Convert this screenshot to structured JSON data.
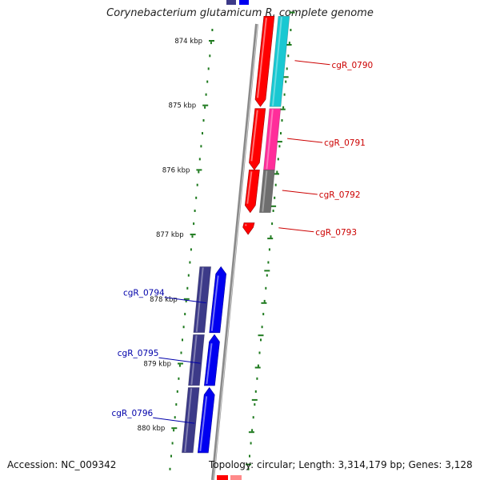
{
  "header": {
    "title": "Corynebacterium glutamicum R, complete genome"
  },
  "colors": {
    "backbone": "#8a8a8a",
    "ticks": "#1e7a1e",
    "forward_label": "#cc0000",
    "reverse_label": "#0000aa",
    "red": "#ff0000",
    "cyan": "#19c8d2",
    "magenta": "#ff2d9a",
    "gray": "#6e6e6e",
    "blue": "#0000f0",
    "navy": "#3c3a88"
  },
  "ruler": {
    "unit": "kbp",
    "labels": [
      {
        "kbp": 874,
        "text": "874 kbp"
      },
      {
        "kbp": 875,
        "text": "875 kbp"
      },
      {
        "kbp": 876,
        "text": "876 kbp"
      },
      {
        "kbp": 877,
        "text": "877 kbp"
      },
      {
        "kbp": 878,
        "text": "878 kbp"
      },
      {
        "kbp": 879,
        "text": "879 kbp"
      },
      {
        "kbp": 880,
        "text": "880 kbp"
      }
    ]
  },
  "features": {
    "genes": [
      {
        "name": "cgR_0790",
        "strand": "forward",
        "start_kbp": 873.62,
        "end_kbp": 875.02,
        "cog_color": "cyan"
      },
      {
        "name": "cgR_0791",
        "strand": "forward",
        "start_kbp": 875.05,
        "end_kbp": 876.0,
        "cog_color": "magenta"
      },
      {
        "name": "cgR_0792",
        "strand": "forward",
        "start_kbp": 876.0,
        "end_kbp": 876.66,
        "cog_color": "gray"
      },
      {
        "name": "cgR_0793",
        "strand": "forward",
        "start_kbp": 876.82,
        "end_kbp": 877.0,
        "cog_color": "none"
      },
      {
        "name": "cgR_0794",
        "strand": "reverse",
        "start_kbp": 877.5,
        "end_kbp": 878.52,
        "cog_color": "navy"
      },
      {
        "name": "cgR_0795",
        "strand": "reverse",
        "start_kbp": 878.55,
        "end_kbp": 879.34,
        "cog_color": "navy"
      },
      {
        "name": "cgR_0796",
        "strand": "reverse",
        "start_kbp": 879.37,
        "end_kbp": 880.38,
        "cog_color": "navy"
      }
    ]
  },
  "footer": {
    "accession": "Accession: NC_009342",
    "topology": "Topology: circular; Length: 3,314,179 bp; Genes: 3,128"
  }
}
